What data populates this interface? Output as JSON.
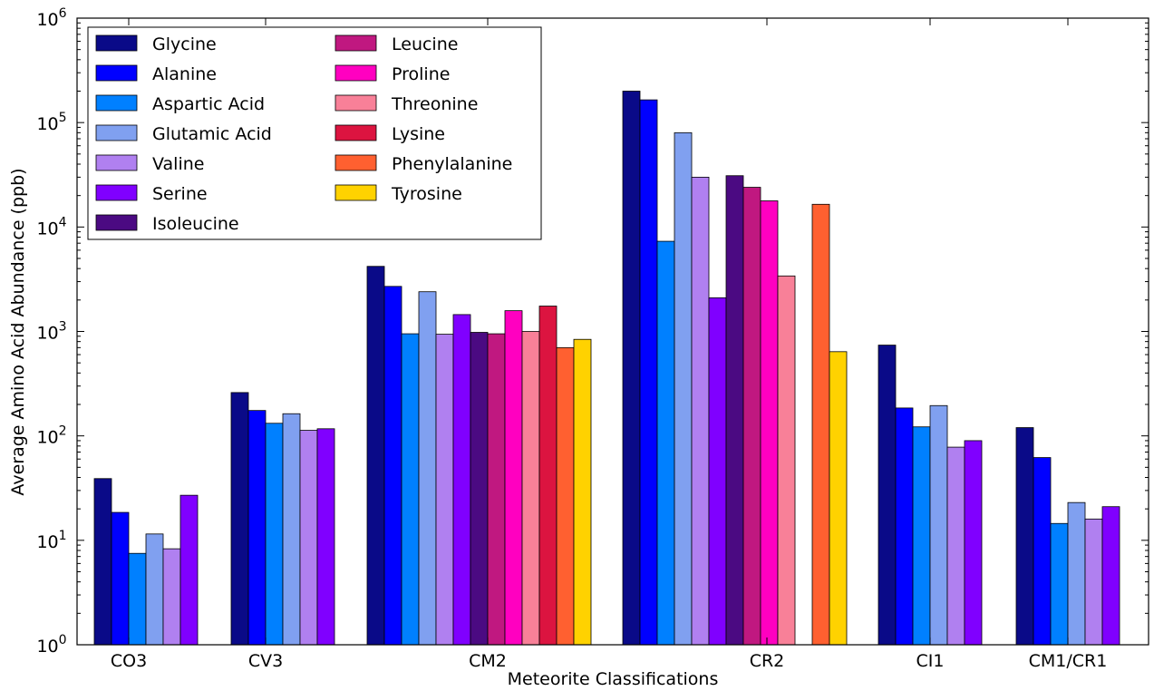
{
  "chart_data": {
    "type": "bar",
    "yscale": "log",
    "ylim": [
      1,
      1000000
    ],
    "xlabel": "Meteorite Classifications",
    "ylabel": "Average Amino Acid Abundance (ppb)",
    "y_ticks": [
      {
        "value": 1,
        "base": "10",
        "exp": "0"
      },
      {
        "value": 10,
        "base": "10",
        "exp": "1"
      },
      {
        "value": 100,
        "base": "10",
        "exp": "2"
      },
      {
        "value": 1000,
        "base": "10",
        "exp": "3"
      },
      {
        "value": 10000,
        "base": "10",
        "exp": "4"
      },
      {
        "value": 100000,
        "base": "10",
        "exp": "5"
      },
      {
        "value": 1000000,
        "base": "10",
        "exp": "6"
      }
    ],
    "categories": [
      "CO3",
      "CV3",
      "CM2",
      "CR2",
      "CI1",
      "CM1/CR1"
    ],
    "legend_position": "top-left",
    "grid": false,
    "series": [
      {
        "name": "Glycine",
        "color": "#0a0a88",
        "values": [
          39,
          260,
          4200,
          200000,
          740,
          120
        ]
      },
      {
        "name": "Alanine",
        "color": "#0000ff",
        "values": [
          18.5,
          175,
          2700,
          165000,
          185,
          62
        ]
      },
      {
        "name": "Aspartic Acid",
        "color": "#0080ff",
        "values": [
          7.5,
          132,
          950,
          7300,
          122,
          14.5
        ]
      },
      {
        "name": "Glutamic Acid",
        "color": "#80a0f0",
        "values": [
          11.5,
          163,
          2400,
          80000,
          195,
          23
        ]
      },
      {
        "name": "Valine",
        "color": "#b080f0",
        "values": [
          8.3,
          113,
          940,
          30000,
          78,
          16
        ]
      },
      {
        "name": "Serine",
        "color": "#8000ff",
        "values": [
          27,
          117,
          1450,
          2100,
          90,
          21
        ]
      },
      {
        "name": "Isoleucine",
        "color": "#4b0a82",
        "values": [
          null,
          null,
          980,
          31000,
          null,
          null
        ]
      },
      {
        "name": "Leucine",
        "color": "#c01880",
        "values": [
          null,
          null,
          950,
          24000,
          null,
          null
        ]
      },
      {
        "name": "Proline",
        "color": "#ff00c0",
        "values": [
          null,
          null,
          1580,
          17800,
          null,
          null
        ]
      },
      {
        "name": "Threonine",
        "color": "#f88098",
        "values": [
          null,
          null,
          1000,
          3400,
          null,
          null
        ]
      },
      {
        "name": "Lysine",
        "color": "#dc1440",
        "values": [
          null,
          null,
          1750,
          null,
          null,
          null
        ]
      },
      {
        "name": "Phenylalanine",
        "color": "#ff6030",
        "values": [
          null,
          null,
          700,
          16500,
          null,
          null
        ]
      },
      {
        "name": "Tyrosine",
        "color": "#ffd200",
        "values": [
          null,
          null,
          840,
          640,
          null,
          null
        ]
      }
    ]
  }
}
